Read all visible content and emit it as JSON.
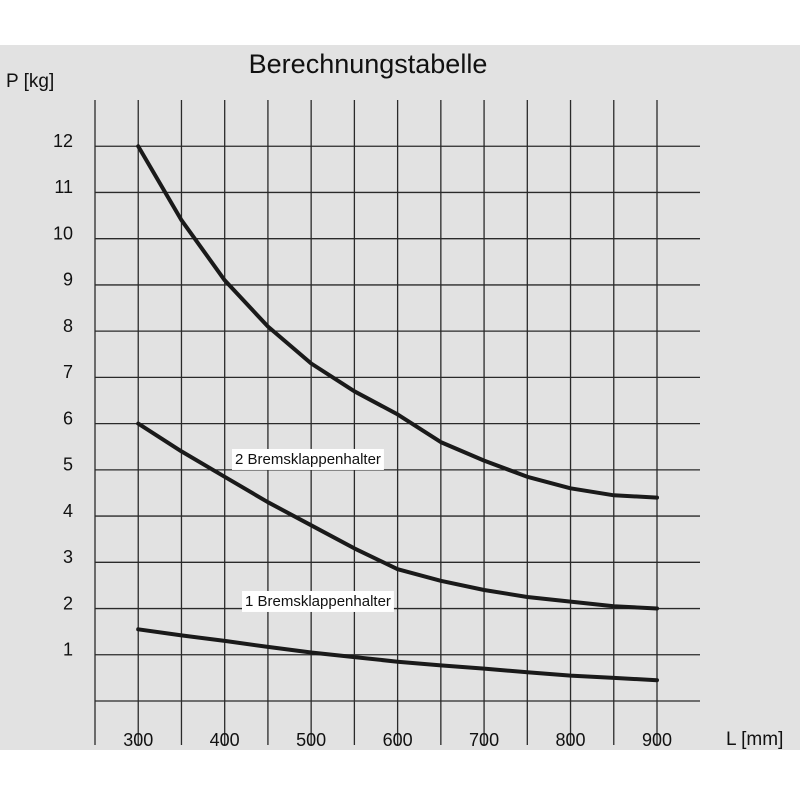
{
  "chart_data": {
    "type": "line",
    "title": "Berechnungstabelle",
    "y_label": "P [kg]",
    "x_label": "L [mm]",
    "x": [
      300,
      350,
      400,
      450,
      500,
      550,
      600,
      650,
      700,
      750,
      800,
      850,
      900
    ],
    "series": [
      {
        "color": "#1a1a1a",
        "values": [
          12,
          10.4,
          9.1,
          8.1,
          7.3,
          6.7,
          6.2,
          5.6,
          5.2,
          4.85,
          4.6,
          4.45,
          4.4
        ]
      },
      {
        "color": "#1a1a1a",
        "values": [
          6,
          5.4,
          4.85,
          4.3,
          3.8,
          3.3,
          2.85,
          2.6,
          2.4,
          2.25,
          2.15,
          2.05,
          2.0
        ]
      },
      {
        "color": "#1a1a1a",
        "values": [
          1.55,
          1.42,
          1.3,
          1.17,
          1.05,
          0.95,
          0.85,
          0.77,
          0.7,
          0.62,
          0.55,
          0.5,
          0.45
        ]
      }
    ],
    "annotations": [
      "2 Bremsklappenhalter",
      "1 Bremsklappenhalter"
    ],
    "xlim": [
      250,
      950
    ],
    "ylim": [
      0,
      13
    ],
    "xticks": [
      300,
      400,
      500,
      600,
      700,
      800,
      900
    ],
    "minor_xticks": [
      250,
      350,
      450,
      550,
      650,
      750,
      850
    ],
    "yticks": [
      1,
      2,
      3,
      4,
      5,
      6,
      7,
      8,
      9,
      10,
      11,
      12
    ],
    "grid": true
  }
}
